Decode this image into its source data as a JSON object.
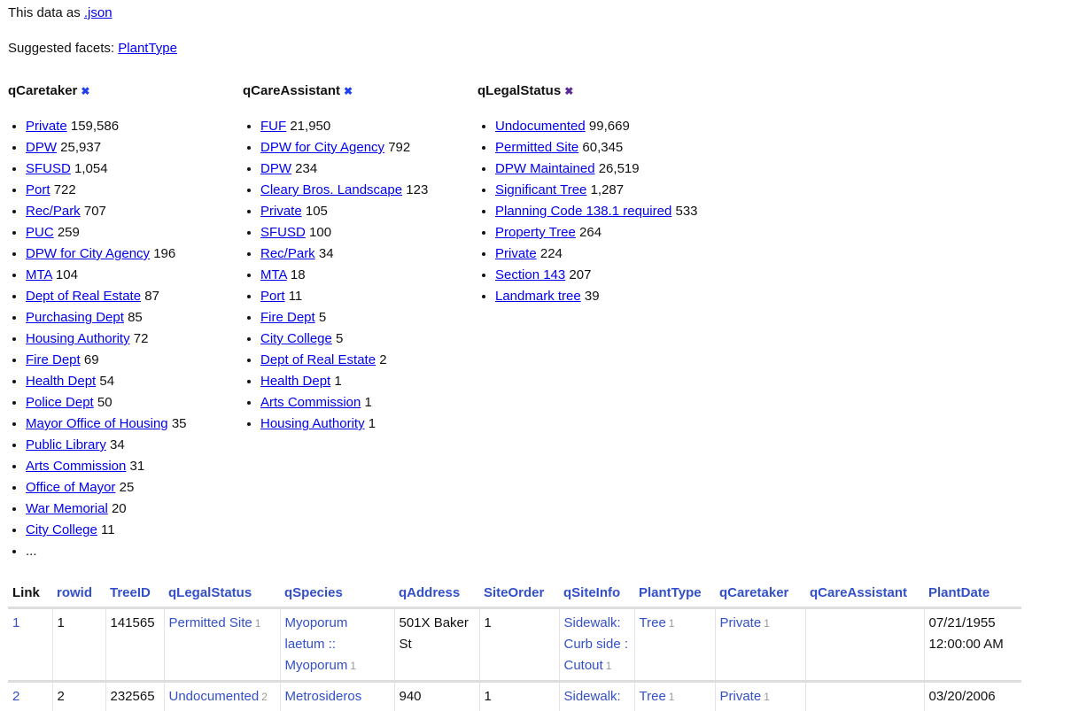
{
  "header": {
    "json_prefix": "This data as",
    "json_link": ".json",
    "suggested_label": "Suggested facets:",
    "suggested": [
      "PlantType"
    ]
  },
  "colors": {
    "link": "#0000ee",
    "table_link": "#3350c8",
    "remove_caretaker": "#2040ee",
    "remove_assistant": "#2040ee",
    "remove_legal": "#5a2a9a"
  },
  "facets": [
    {
      "name": "qCaretaker",
      "remove_icon": "close-x-icon",
      "remove_color": "#2040ee",
      "items": [
        [
          "Private",
          "159,586"
        ],
        [
          "DPW",
          "25,937"
        ],
        [
          "SFUSD",
          "1,054"
        ],
        [
          "Port",
          "722"
        ],
        [
          "Rec/Park",
          "707"
        ],
        [
          "PUC",
          "259"
        ],
        [
          "DPW for City Agency",
          "196"
        ],
        [
          "MTA",
          "104"
        ],
        [
          "Dept of Real Estate",
          "87"
        ],
        [
          "Purchasing Dept",
          "85"
        ],
        [
          "Housing Authority",
          "72"
        ],
        [
          "Fire Dept",
          "69"
        ],
        [
          "Health Dept",
          "54"
        ],
        [
          "Police Dept",
          "50"
        ],
        [
          "Mayor Office of Housing",
          "35"
        ],
        [
          "Public Library",
          "34"
        ],
        [
          "Arts Commission",
          "31"
        ],
        [
          "Office of Mayor",
          "25"
        ],
        [
          "War Memorial",
          "20"
        ],
        [
          "City College",
          "11"
        ]
      ],
      "more": "..."
    },
    {
      "name": "qCareAssistant",
      "remove_icon": "close-x-icon",
      "remove_color": "#2040ee",
      "items": [
        [
          "FUF",
          "21,950"
        ],
        [
          "DPW for City Agency",
          "792"
        ],
        [
          "DPW",
          "234"
        ],
        [
          "Cleary Bros. Landscape",
          "123"
        ],
        [
          "Private",
          "105"
        ],
        [
          "SFUSD",
          "100"
        ],
        [
          "Rec/Park",
          "34"
        ],
        [
          "MTA",
          "18"
        ],
        [
          "Port",
          "11"
        ],
        [
          "Fire Dept",
          "5"
        ],
        [
          "City College",
          "5"
        ],
        [
          "Dept of Real Estate",
          "2"
        ],
        [
          "Health Dept",
          "1"
        ],
        [
          "Arts Commission",
          "1"
        ],
        [
          "Housing Authority",
          "1"
        ]
      ]
    },
    {
      "name": "qLegalStatus",
      "remove_icon": "close-x-icon",
      "remove_color": "#5a2a9a",
      "items": [
        [
          "Undocumented",
          "99,669"
        ],
        [
          "Permitted Site",
          "60,345"
        ],
        [
          "DPW Maintained",
          "26,519"
        ],
        [
          "Significant Tree",
          "1,287"
        ],
        [
          "Planning Code 138.1 required",
          "533"
        ],
        [
          "Property Tree",
          "264"
        ],
        [
          "Private",
          "224"
        ],
        [
          "Section 143",
          "207"
        ],
        [
          "Landmark tree",
          "39"
        ]
      ]
    }
  ],
  "table": {
    "columns": [
      "Link",
      "rowid",
      "TreeID",
      "qLegalStatus",
      "qSpecies",
      "qAddress",
      "SiteOrder",
      "qSiteInfo",
      "PlantType",
      "qCaretaker",
      "qCareAssistant",
      "PlantDate"
    ],
    "rows": [
      [
        {
          "t": "1",
          "link": true
        },
        {
          "t": "1"
        },
        {
          "t": "141565"
        },
        {
          "t": "Permitted Site",
          "link": true,
          "c": "1"
        },
        {
          "t": "Myoporum laetum :: Myoporum",
          "link": true,
          "c": "1"
        },
        {
          "t": "501X Baker St"
        },
        {
          "t": "1"
        },
        {
          "t": "Sidewalk: Curb side : Cutout",
          "link": true,
          "c": "1"
        },
        {
          "t": "Tree",
          "link": true,
          "c": "1"
        },
        {
          "t": "Private",
          "link": true,
          "c": "1"
        },
        {
          "t": ""
        },
        {
          "t": "07/21/1955 12:00:00 AM"
        }
      ],
      [
        {
          "t": "2",
          "link": true
        },
        {
          "t": "2"
        },
        {
          "t": "232565"
        },
        {
          "t": "Undocumented",
          "link": true,
          "c": "2"
        },
        {
          "t": "Metrosideros",
          "link": true
        },
        {
          "t": "940"
        },
        {
          "t": "1"
        },
        {
          "t": "Sidewalk:",
          "link": true
        },
        {
          "t": "Tree",
          "link": true,
          "c": "1"
        },
        {
          "t": "Private",
          "link": true,
          "c": "1"
        },
        {
          "t": ""
        },
        {
          "t": "03/20/2006"
        }
      ]
    ]
  }
}
